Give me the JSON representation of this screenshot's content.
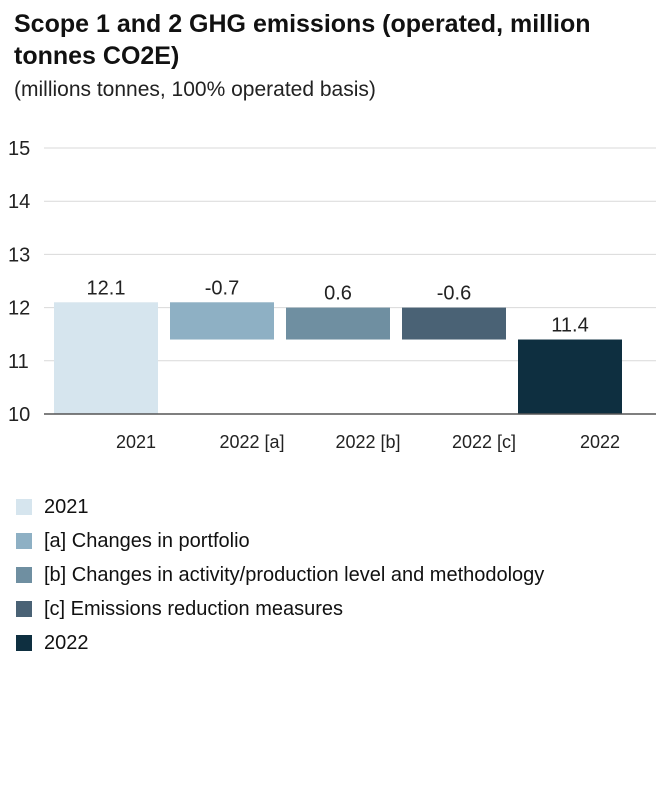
{
  "chart_data": {
    "type": "bar",
    "subtype": "waterfall",
    "title": "Scope 1 and 2 GHG emissions (operated, million tonnes CO2E)",
    "subtitle": "(millions tonnes, 100% operated basis)",
    "xlabel": "",
    "ylabel": "",
    "ylim": [
      10,
      15
    ],
    "yticks": [
      10,
      11,
      12,
      13,
      14,
      15
    ],
    "grid": true,
    "categories": [
      "2021",
      "2022 [a]",
      "2022 [b]",
      "2022 [c]",
      "2022"
    ],
    "bars": [
      {
        "category": "2021",
        "start": 10,
        "end": 12.1,
        "label": "12.1",
        "color": "#d6e5ee"
      },
      {
        "category": "2022 [a]",
        "start": 12.1,
        "end": 11.4,
        "label": "-0.7",
        "color": "#8eb0c4"
      },
      {
        "category": "2022 [b]",
        "start": 11.4,
        "end": 12.0,
        "label": "0.6",
        "color": "#6f8fa1"
      },
      {
        "category": "2022 [c]",
        "start": 12.0,
        "end": 11.4,
        "label": "-0.6",
        "color": "#4a6275"
      },
      {
        "category": "2022",
        "start": 10,
        "end": 11.4,
        "label": "11.4",
        "color": "#0e2f40"
      }
    ],
    "legend_position": "bottom",
    "legend": [
      {
        "label": "2021",
        "color": "#d6e5ee"
      },
      {
        "label": "[a] Changes in portfolio",
        "color": "#8eb0c4"
      },
      {
        "label": "[b] Changes in activity/production level and methodology",
        "color": "#6f8fa1"
      },
      {
        "label": "[c] Emissions reduction measures",
        "color": "#4a6275"
      },
      {
        "label": "2022",
        "color": "#0e2f40"
      }
    ]
  }
}
